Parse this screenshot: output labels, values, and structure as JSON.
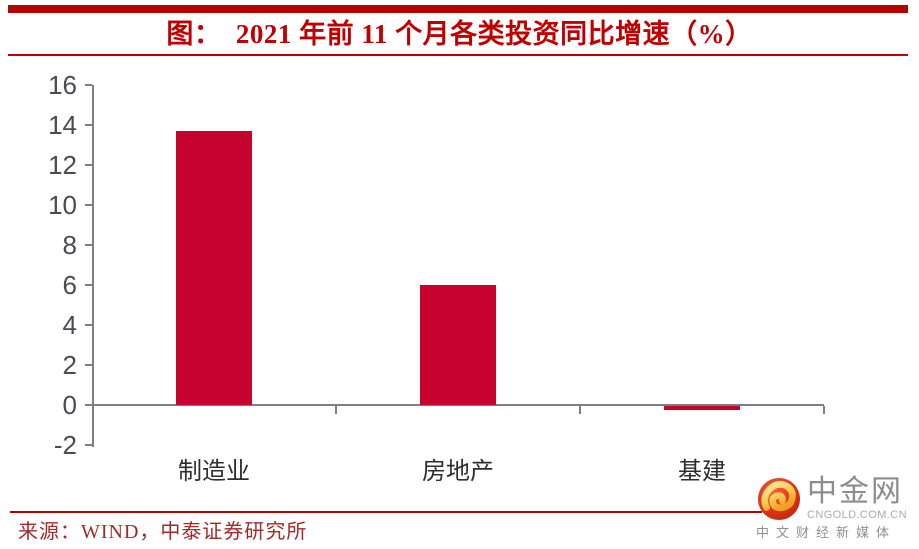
{
  "header": {
    "title": "图：  2021 年前 11 个月各类投资同比增速（%）"
  },
  "chart_data": {
    "type": "bar",
    "title": "2021 年前 11 个月各类投资同比增速（%）",
    "categories": [
      "制造业",
      "房地产",
      "基建"
    ],
    "values": [
      13.7,
      6.0,
      -0.2
    ],
    "xlabel": "",
    "ylabel": "",
    "ylim": [
      -2,
      16
    ],
    "ytick_step": 2,
    "grid": false,
    "legend": "none",
    "bar_color": "#C5032E"
  },
  "footer": {
    "source": "来源：WIND，中泰证券研究所"
  },
  "logo": {
    "name": "中金网",
    "domain": "CNGOLD.COM.CN",
    "tagline": "中文财经新媒体"
  },
  "colors": {
    "accent_band": "#B20500",
    "title_red": "#C00000",
    "bar_red": "#C5032E",
    "axis_gray": "#7F7F7F",
    "tick_label": "#4A4A55",
    "source_red": "#A12A2A",
    "logo_gray": "#8C8C8C"
  }
}
